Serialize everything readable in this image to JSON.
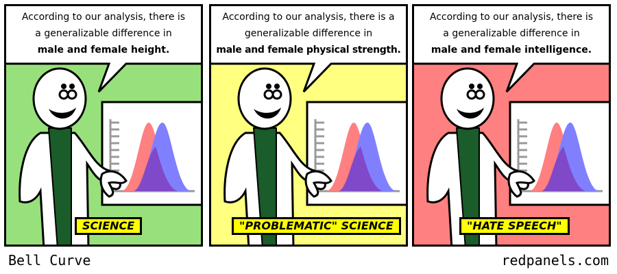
{
  "panels": [
    {
      "line1": "According to our analysis, there is",
      "line2": "a generalizable difference in",
      "line3": "male and female height.",
      "caption": "SCIENCE",
      "bg_color": "#98e07c"
    },
    {
      "line1": "According to our analysis, there is a",
      "line2": "generalizable difference in",
      "line3": "male and female physical strength.",
      "caption": "\"PROBLEMATIC\" SCIENCE",
      "bg_color": "#ffff80"
    },
    {
      "line1": "According to our analysis, there is",
      "line2": "a generalizable difference in",
      "line3": "male and female intelligence.",
      "caption": "\"HATE SPEECH\"",
      "bg_color": "#ff8080"
    }
  ],
  "footer": {
    "title": "Bell Curve",
    "site": "redpanels.com"
  },
  "colors": {
    "female_curve": "#ff8080",
    "male_curve": "#8080ff",
    "overlap": "#8040c0",
    "scarf": "#1a5c2a",
    "caption_bg": "#ffff00"
  }
}
